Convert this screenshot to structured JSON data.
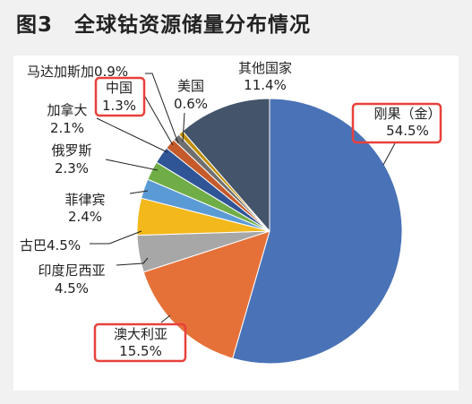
{
  "figure": {
    "number": "图3",
    "title": "全球钴资源储量分布情况"
  },
  "chart_data": {
    "type": "pie",
    "series": [
      {
        "name": "刚果（金）",
        "label_lines": [
          "刚果（金）",
          "54.5%"
        ],
        "value": 54.5,
        "color": "#4a72b7",
        "highlighted": true
      },
      {
        "name": "澳大利亚",
        "label_lines": [
          "澳大利亚",
          "15.5%"
        ],
        "value": 15.5,
        "color": "#e67138",
        "highlighted": true
      },
      {
        "name": "印度尼西亚",
        "label_lines": [
          "印度尼西亚",
          "4.5%"
        ],
        "value": 4.5,
        "color": "#a7a7a7",
        "highlighted": false
      },
      {
        "name": "古巴",
        "label_lines": [
          "古巴4.5%"
        ],
        "value": 4.5,
        "color": "#f2b81c",
        "highlighted": false
      },
      {
        "name": "菲律宾",
        "label_lines": [
          "菲律宾",
          "2.4%"
        ],
        "value": 2.4,
        "color": "#5b9bd5",
        "highlighted": false
      },
      {
        "name": "俄罗斯",
        "label_lines": [
          "俄罗斯",
          "2.3%"
        ],
        "value": 2.3,
        "color": "#70ad47",
        "highlighted": false
      },
      {
        "name": "加拿大",
        "label_lines": [
          "加拿大",
          "2.1%"
        ],
        "value": 2.1,
        "color": "#2f5597",
        "highlighted": false
      },
      {
        "name": "中国",
        "label_lines": [
          "中国",
          "1.3%"
        ],
        "value": 1.3,
        "color": "#c55a2a",
        "highlighted": true
      },
      {
        "name": "马达加斯加",
        "label_lines": [
          "马达加斯加0.9%"
        ],
        "value": 0.9,
        "color": "#6f6f6f",
        "highlighted": false
      },
      {
        "name": "美国",
        "label_lines": [
          "美国",
          "0.6%"
        ],
        "value": 0.6,
        "color": "#bf8f00",
        "highlighted": false
      },
      {
        "name": "其他国家",
        "label_lines": [
          "其他国家",
          "11.4%"
        ],
        "value": 11.4,
        "color": "#44546a",
        "highlighted": false
      }
    ]
  },
  "colors": {
    "highlight_box": "#e8413b",
    "leader_line": "#222222",
    "slice_edge": "#ffffff"
  }
}
